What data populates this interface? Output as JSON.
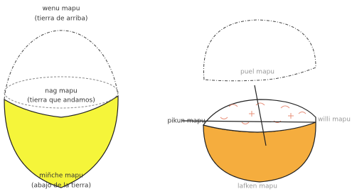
{
  "left_sphere": {
    "top": {
      "label": "wenu mapu",
      "sublabel": "(tierra de arriba)"
    },
    "middle": {
      "label": "nag mapu",
      "sublabel": "(tierra que andamos)"
    },
    "bottom": {
      "label": "miñche mapu",
      "sublabel": "(abajo de la tierra)"
    }
  },
  "right_sphere": {
    "top": {
      "label": "puel mapu"
    },
    "left": {
      "label": "pikun mapu"
    },
    "right": {
      "label": "willi mapu"
    },
    "bottom": {
      "label": "lafken mapu"
    }
  }
}
